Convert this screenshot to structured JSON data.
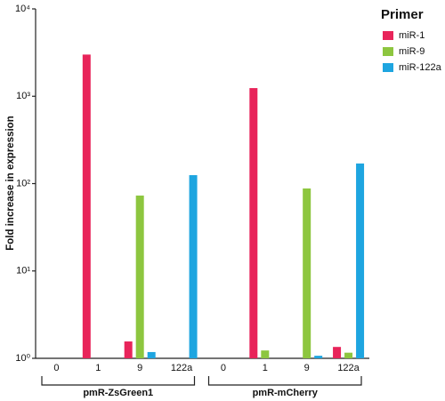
{
  "chart_data": {
    "type": "bar",
    "y_label": "Fold increase in expression",
    "log_scale": true,
    "categories": [
      "0",
      "1",
      "9",
      "122a",
      "0",
      "1",
      "9",
      "122a"
    ],
    "groups": [
      "pmR-ZsGreen1",
      "pmR-mCherry"
    ],
    "legend_title": "Primer",
    "legend": "top-right",
    "series": [
      {
        "name": "miR-1",
        "color": "#e8245a",
        "values": [
          1,
          3000,
          1.56,
          1,
          1,
          1240,
          1,
          1.35
        ]
      },
      {
        "name": "miR-9",
        "color": "#8dc63f",
        "values": [
          1,
          1,
          73,
          1,
          1,
          1.23,
          88,
          1.16
        ]
      },
      {
        "name": "miR-122a",
        "color": "#1ea5e0",
        "values": [
          1,
          1,
          1.18,
          125,
          1,
          1,
          1.07,
          170
        ]
      }
    ],
    "ylim": [
      1,
      10000
    ],
    "yticks": [
      {
        "value": 1,
        "label": "10⁰"
      },
      {
        "value": 10,
        "label": "10¹"
      },
      {
        "value": 100,
        "label": "10²"
      },
      {
        "value": 1000,
        "label": "10³"
      },
      {
        "value": 10000,
        "label": "10⁴"
      }
    ]
  }
}
